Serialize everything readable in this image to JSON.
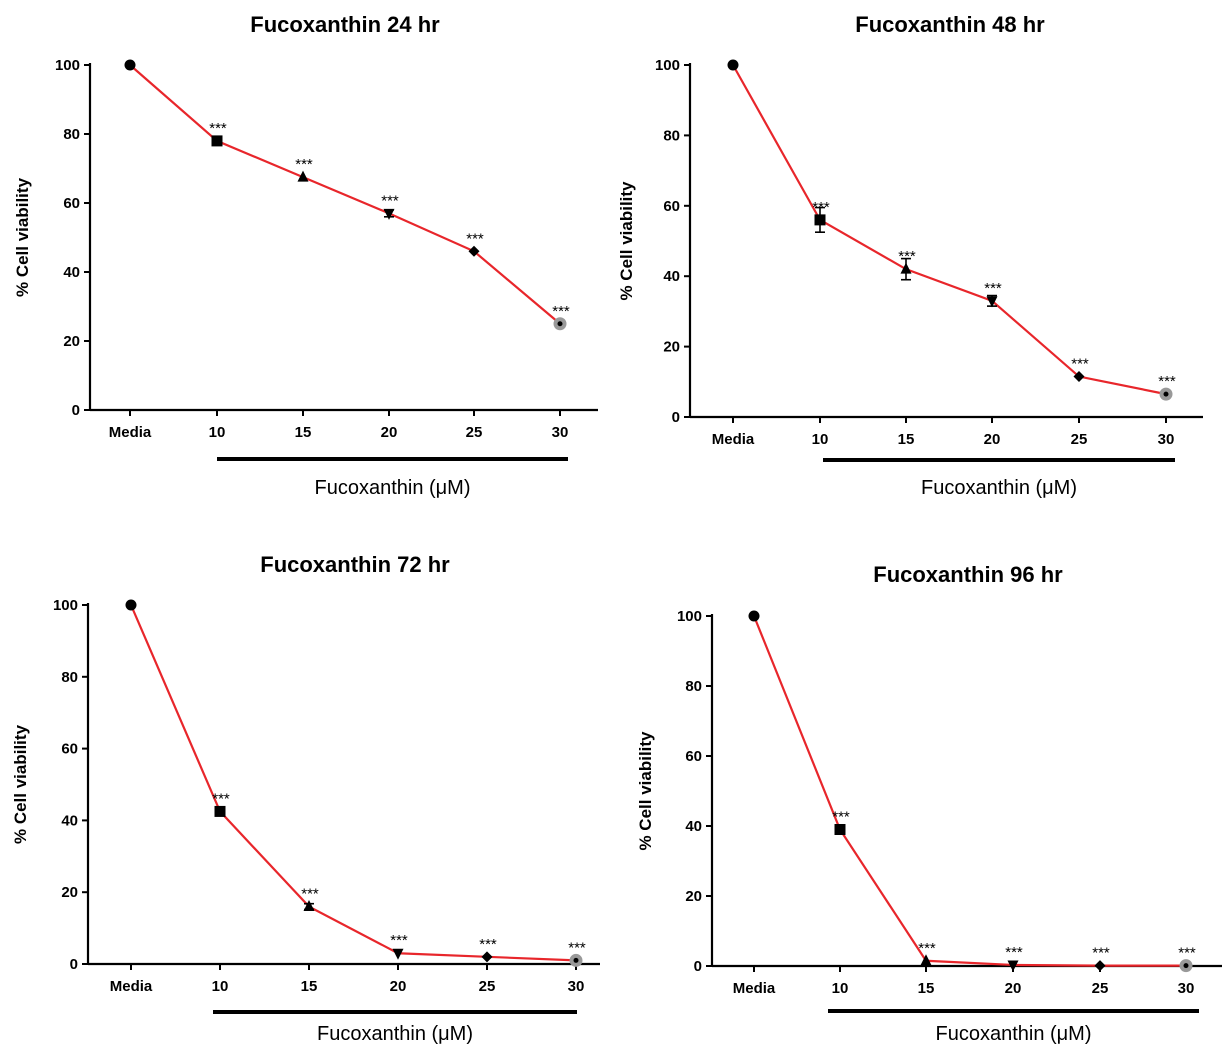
{
  "colors": {
    "line": "#e8262b",
    "axis": "#000000",
    "marker": "#000000",
    "marker_last": "#999999"
  },
  "chart_data": [
    {
      "type": "line",
      "title": "Fucoxanthin 24 hr",
      "xlabel": "Fucoxanthin (μM)",
      "ylabel": "% Cell viability",
      "categories": [
        "Media",
        "10",
        "15",
        "20",
        "25",
        "30"
      ],
      "values": [
        100,
        78,
        67.5,
        57,
        46,
        25
      ],
      "errors": [
        0,
        0.5,
        0.5,
        1,
        0.5,
        0.5
      ],
      "annotations": [
        "",
        "***",
        "***",
        "***",
        "***",
        "***"
      ],
      "markers": [
        "circle",
        "square",
        "triangle-up",
        "triangle-down",
        "diamond",
        "circle"
      ],
      "yticks": [
        0,
        20,
        40,
        60,
        80,
        100
      ],
      "ylim": [
        0,
        100
      ],
      "grid": false
    },
    {
      "type": "line",
      "title": "Fucoxanthin 48 hr",
      "xlabel": "Fucoxanthin (μM)",
      "ylabel": "% Cell viability",
      "categories": [
        "Media",
        "10",
        "15",
        "20",
        "25",
        "30"
      ],
      "values": [
        100,
        56,
        42,
        33,
        11.5,
        6.5
      ],
      "errors": [
        0,
        3.5,
        3,
        1.5,
        0.5,
        0.5
      ],
      "annotations": [
        "",
        "***",
        "***",
        "***",
        "***",
        "***"
      ],
      "markers": [
        "circle",
        "square",
        "triangle-up",
        "triangle-down",
        "diamond",
        "circle"
      ],
      "yticks": [
        0,
        20,
        40,
        60,
        80,
        100
      ],
      "ylim": [
        0,
        100
      ],
      "grid": false
    },
    {
      "type": "line",
      "title": "Fucoxanthin 72 hr",
      "xlabel": "Fucoxanthin (μM)",
      "ylabel": "% Cell viability",
      "categories": [
        "Media",
        "10",
        "15",
        "20",
        "25",
        "30"
      ],
      "values": [
        100,
        42.5,
        16,
        3,
        2,
        1
      ],
      "errors": [
        0,
        1,
        0.8,
        0.5,
        0.3,
        0.3
      ],
      "annotations": [
        "",
        "***",
        "***",
        "***",
        "***",
        "***"
      ],
      "markers": [
        "circle",
        "square",
        "triangle-up",
        "triangle-down",
        "diamond",
        "circle"
      ],
      "yticks": [
        0,
        20,
        40,
        60,
        80,
        100
      ],
      "ylim": [
        0,
        100
      ],
      "grid": false
    },
    {
      "type": "line",
      "title": "Fucoxanthin 96 hr",
      "xlabel": "Fucoxanthin (μM)",
      "ylabel": "% Cell viability",
      "categories": [
        "Media",
        "10",
        "15",
        "20",
        "25",
        "30"
      ],
      "values": [
        100,
        39,
        1.5,
        0.3,
        0.1,
        0.1
      ],
      "errors": [
        0,
        1,
        0.5,
        0.3,
        0.2,
        0.2
      ],
      "annotations": [
        "",
        "***",
        "***",
        "***",
        "***",
        "***"
      ],
      "markers": [
        "circle",
        "square",
        "triangle-up",
        "triangle-down",
        "diamond",
        "circle"
      ],
      "yticks": [
        0,
        20,
        40,
        60,
        80,
        100
      ],
      "ylim": [
        0,
        100
      ],
      "grid": false
    }
  ]
}
